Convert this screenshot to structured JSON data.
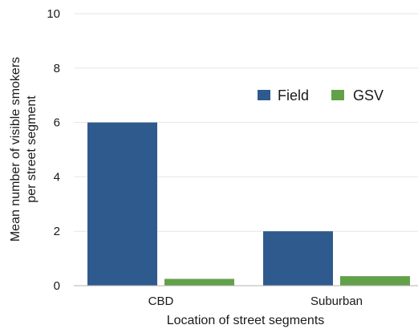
{
  "chart_data": {
    "type": "bar",
    "title": "",
    "xlabel": "Location of street segments",
    "ylabel_lines": [
      "Mean number of visible smokers",
      "per street segment"
    ],
    "categories": [
      "CBD",
      "Suburban"
    ],
    "series": [
      {
        "name": "Field",
        "color": "#2e5a8e",
        "values": [
          6.0,
          2.0
        ]
      },
      {
        "name": "GSV",
        "color": "#62a14a",
        "values": [
          0.25,
          0.35
        ]
      }
    ],
    "ylim": [
      0,
      10
    ],
    "yticks": [
      0,
      2,
      4,
      6,
      8,
      10
    ],
    "ytick_labels": [
      "0",
      "2",
      "4",
      "6",
      "8",
      "10"
    ],
    "grid": true,
    "legend_position": "top-right"
  }
}
